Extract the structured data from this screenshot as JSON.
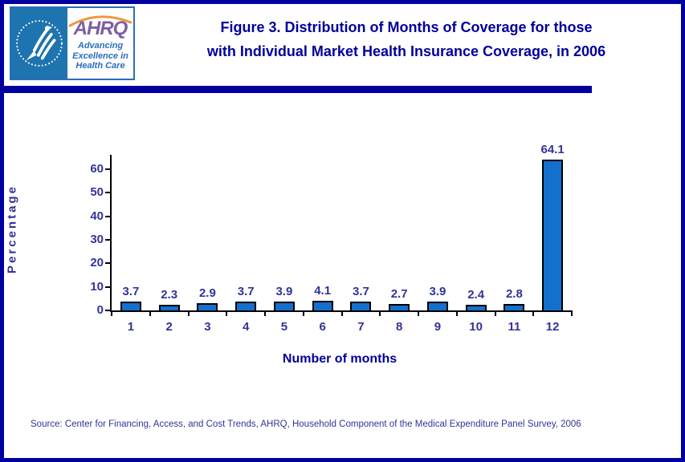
{
  "header": {
    "logo": {
      "org_abbr": "AHRQ",
      "tagline_line1": "Advancing",
      "tagline_line2": "Excellence in",
      "tagline_line3": "Health Care"
    },
    "title_line1": "Figure 3. Distribution of Months of Coverage for those",
    "title_line2": "with Individual Market Health Insurance Coverage, in 2006"
  },
  "chart_data": {
    "type": "bar",
    "categories": [
      "1",
      "2",
      "3",
      "4",
      "5",
      "6",
      "7",
      "8",
      "9",
      "10",
      "11",
      "12"
    ],
    "values": [
      3.7,
      2.3,
      2.9,
      3.7,
      3.9,
      4.1,
      3.7,
      2.7,
      3.9,
      2.4,
      2.8,
      64.1
    ],
    "title": "",
    "xlabel": "Number of months",
    "ylabel": "Percentage",
    "ylim": [
      0,
      66
    ],
    "y_ticks": [
      0,
      10,
      20,
      30,
      40,
      50,
      60
    ],
    "value_labels_shown": true,
    "grid": false,
    "legend": "none",
    "bar_color": "#1470CC",
    "bar_border_color": "#000000"
  },
  "footer": {
    "source": "Source: Center for Financing, Access, and Cost Trends, AHRQ, Household Component of the Medical Expenditure Panel Survey, 2006"
  },
  "colors": {
    "accent_navy": "#0000A0",
    "title_text": "#00009C",
    "chart_text": "#333399",
    "logo_teal": "#1E74AE",
    "logo_purple": "#7B5FA4",
    "logo_orange": "#F0953E",
    "logo_blue": "#2A6EBB"
  }
}
